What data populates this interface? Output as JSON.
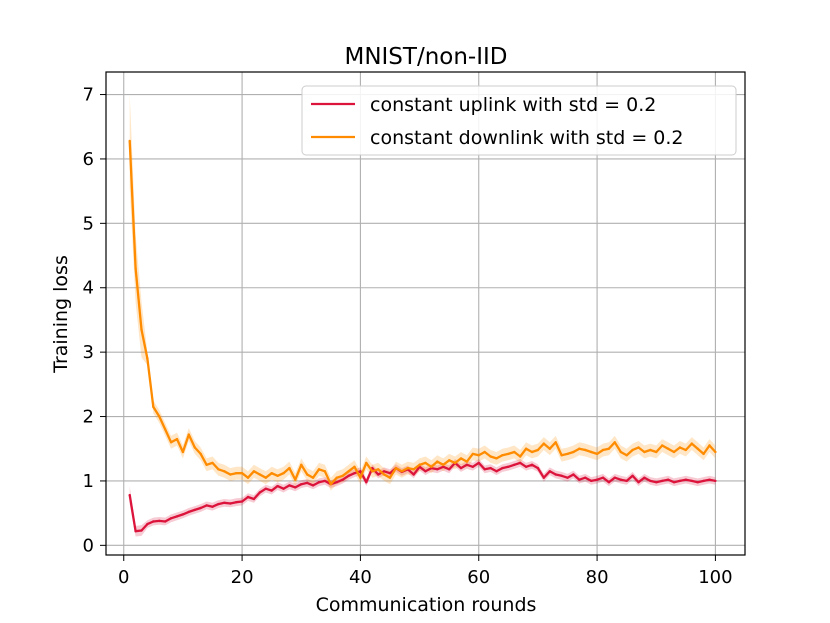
{
  "chart_data": {
    "type": "line",
    "title": "MNIST/non-IID",
    "xlabel": "Communication rounds",
    "ylabel": "Training loss",
    "xlim": [
      -3,
      105
    ],
    "ylim": [
      -0.15,
      7.35
    ],
    "xticks": [
      0,
      20,
      40,
      60,
      80,
      100
    ],
    "yticks": [
      0,
      1,
      2,
      3,
      4,
      5,
      6,
      7
    ],
    "xtick_labels": [
      "0",
      "20",
      "40",
      "60",
      "80",
      "100"
    ],
    "ytick_labels": [
      "0",
      "1",
      "2",
      "3",
      "4",
      "5",
      "6",
      "7"
    ],
    "grid": true,
    "legend_position": "top-right",
    "series": [
      {
        "name": "constant uplink with std = 0.2",
        "color": "#dc143c",
        "x": [
          1,
          2,
          3,
          4,
          5,
          6,
          7,
          8,
          9,
          10,
          11,
          12,
          13,
          14,
          15,
          16,
          17,
          18,
          19,
          20,
          21,
          22,
          23,
          24,
          25,
          26,
          27,
          28,
          29,
          30,
          31,
          32,
          33,
          34,
          35,
          36,
          37,
          38,
          39,
          40,
          41,
          42,
          43,
          44,
          45,
          46,
          47,
          48,
          49,
          50,
          51,
          52,
          53,
          54,
          55,
          56,
          57,
          58,
          59,
          60,
          61,
          62,
          63,
          64,
          65,
          66,
          67,
          68,
          69,
          70,
          71,
          72,
          73,
          74,
          75,
          76,
          77,
          78,
          79,
          80,
          81,
          82,
          83,
          84,
          85,
          86,
          87,
          88,
          89,
          90,
          91,
          92,
          93,
          94,
          95,
          96,
          97,
          98,
          99,
          100
        ],
        "values": [
          0.78,
          0.22,
          0.23,
          0.33,
          0.37,
          0.38,
          0.37,
          0.42,
          0.45,
          0.48,
          0.52,
          0.55,
          0.58,
          0.62,
          0.6,
          0.64,
          0.66,
          0.65,
          0.67,
          0.68,
          0.75,
          0.72,
          0.82,
          0.88,
          0.85,
          0.92,
          0.88,
          0.93,
          0.9,
          0.95,
          0.97,
          0.93,
          0.98,
          1.0,
          0.95,
          0.98,
          1.02,
          1.08,
          1.12,
          1.15,
          0.98,
          1.2,
          1.1,
          1.15,
          1.12,
          1.2,
          1.14,
          1.18,
          1.1,
          1.22,
          1.15,
          1.2,
          1.18,
          1.22,
          1.18,
          1.28,
          1.2,
          1.25,
          1.22,
          1.28,
          1.18,
          1.2,
          1.15,
          1.2,
          1.22,
          1.25,
          1.28,
          1.22,
          1.25,
          1.2,
          1.05,
          1.15,
          1.1,
          1.08,
          1.05,
          1.1,
          1.02,
          1.05,
          1.0,
          1.02,
          1.05,
          0.98,
          1.05,
          1.02,
          1.0,
          1.08,
          0.98,
          1.05,
          1.0,
          0.98,
          1.0,
          1.02,
          0.98,
          1.0,
          1.02,
          1.0,
          0.98,
          1.0,
          1.02,
          1.0
        ],
        "band": 0.06
      },
      {
        "name": "constant downlink with std = 0.2",
        "color": "#ff8c00",
        "x": [
          1,
          2,
          3,
          4,
          5,
          6,
          7,
          8,
          9,
          10,
          11,
          12,
          13,
          14,
          15,
          16,
          17,
          18,
          19,
          20,
          21,
          22,
          23,
          24,
          25,
          26,
          27,
          28,
          29,
          30,
          31,
          32,
          33,
          34,
          35,
          36,
          37,
          38,
          39,
          40,
          41,
          42,
          43,
          44,
          45,
          46,
          47,
          48,
          49,
          50,
          51,
          52,
          53,
          54,
          55,
          56,
          57,
          58,
          59,
          60,
          61,
          62,
          63,
          64,
          65,
          66,
          67,
          68,
          69,
          70,
          71,
          72,
          73,
          74,
          75,
          76,
          77,
          78,
          79,
          80,
          81,
          82,
          83,
          84,
          85,
          86,
          87,
          88,
          89,
          90,
          91,
          92,
          93,
          94,
          95,
          96,
          97,
          98,
          99,
          100
        ],
        "values": [
          6.28,
          4.3,
          3.35,
          2.9,
          2.15,
          2.0,
          1.8,
          1.6,
          1.65,
          1.45,
          1.72,
          1.52,
          1.42,
          1.25,
          1.28,
          1.18,
          1.15,
          1.1,
          1.12,
          1.12,
          1.05,
          1.15,
          1.1,
          1.05,
          1.12,
          1.08,
          1.12,
          1.2,
          1.02,
          1.25,
          1.1,
          1.05,
          1.18,
          1.15,
          0.95,
          1.05,
          1.08,
          1.15,
          1.22,
          1.05,
          1.28,
          1.15,
          1.18,
          1.1,
          1.05,
          1.2,
          1.15,
          1.2,
          1.18,
          1.25,
          1.28,
          1.22,
          1.3,
          1.25,
          1.32,
          1.28,
          1.35,
          1.3,
          1.42,
          1.4,
          1.45,
          1.38,
          1.35,
          1.4,
          1.42,
          1.45,
          1.38,
          1.5,
          1.45,
          1.48,
          1.58,
          1.5,
          1.6,
          1.4,
          1.42,
          1.45,
          1.5,
          1.48,
          1.45,
          1.42,
          1.48,
          1.5,
          1.6,
          1.45,
          1.4,
          1.48,
          1.52,
          1.45,
          1.48,
          1.45,
          1.55,
          1.5,
          1.45,
          1.52,
          1.48,
          1.58,
          1.5,
          1.42,
          1.55,
          1.45
        ],
        "band": 0.1
      }
    ]
  }
}
